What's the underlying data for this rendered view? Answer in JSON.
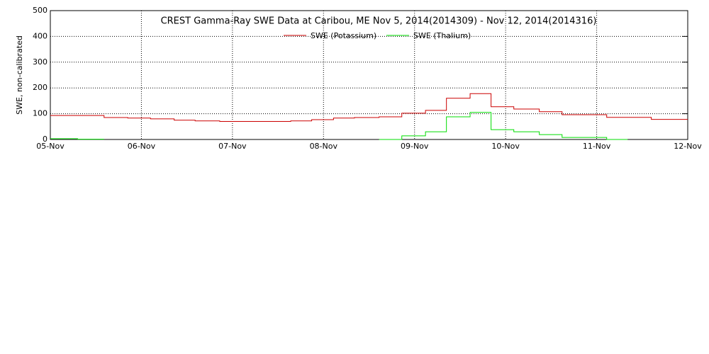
{
  "chart_data": {
    "type": "line",
    "title": "CREST Gamma-Ray SWE Data at Caribou, ME   Nov  5, 2014(2014309) - Nov 12, 2014(2014316)",
    "y_label": "SWE, non-calibrated",
    "xlim": [
      5,
      12
    ],
    "xticks": [
      {
        "value": 5,
        "label": "05-Nov"
      },
      {
        "value": 6,
        "label": "06-Nov"
      },
      {
        "value": 7,
        "label": "07-Nov"
      },
      {
        "value": 8,
        "label": "08-Nov"
      },
      {
        "value": 9,
        "label": "09-Nov"
      },
      {
        "value": 10,
        "label": "10-Nov"
      },
      {
        "value": 11,
        "label": "11-Nov"
      },
      {
        "value": 12,
        "label": "12-Nov"
      }
    ],
    "ylim": [
      0,
      500
    ],
    "yticks": [
      0,
      100,
      200,
      300,
      400,
      500
    ],
    "grid": true,
    "series": [
      {
        "name": "SWE (Potassium)",
        "color": "#cc0000",
        "x": [
          5,
          5.59,
          5.59,
          5.85,
          5.85,
          6.1,
          6.1,
          6.36,
          6.36,
          6.59,
          6.59,
          6.86,
          6.86,
          7.64,
          7.64,
          7.87,
          7.87,
          8.11,
          8.11,
          8.34,
          8.34,
          8.61,
          8.61,
          8.86,
          8.86,
          9.12,
          9.12,
          9.35,
          9.35,
          9.61,
          9.61,
          9.84,
          9.84,
          10.09,
          10.09,
          10.37,
          10.37,
          10.62,
          10.62,
          11.11,
          11.11,
          11.6,
          11.6,
          12
        ],
        "values": [
          93,
          93,
          85,
          85,
          83,
          83,
          80,
          80,
          75,
          75,
          72,
          72,
          70,
          70,
          72,
          72,
          77,
          77,
          83,
          83,
          85,
          85,
          88,
          88,
          102,
          102,
          113,
          113,
          160,
          160,
          178,
          178,
          127,
          127,
          118,
          118,
          108,
          108,
          96,
          96,
          86,
          86,
          78,
          78
        ]
      },
      {
        "name": "SWE (Thalium)",
        "color": "#00dd00",
        "x": [
          5,
          5.3,
          5.3,
          5.59,
          7,
          8.61,
          8.86,
          8.86,
          9.12,
          9.12,
          9.35,
          9.35,
          9.61,
          9.61,
          9.84,
          9.84,
          10.09,
          10.09,
          10.37,
          10.37,
          10.62,
          10.62,
          11.11,
          11.11,
          11.34
        ],
        "values": [
          3,
          3,
          1,
          1,
          null,
          0,
          0,
          14,
          14,
          30,
          30,
          88,
          88,
          105,
          105,
          38,
          38,
          30,
          30,
          19,
          19,
          8,
          8,
          0,
          0
        ]
      }
    ]
  }
}
